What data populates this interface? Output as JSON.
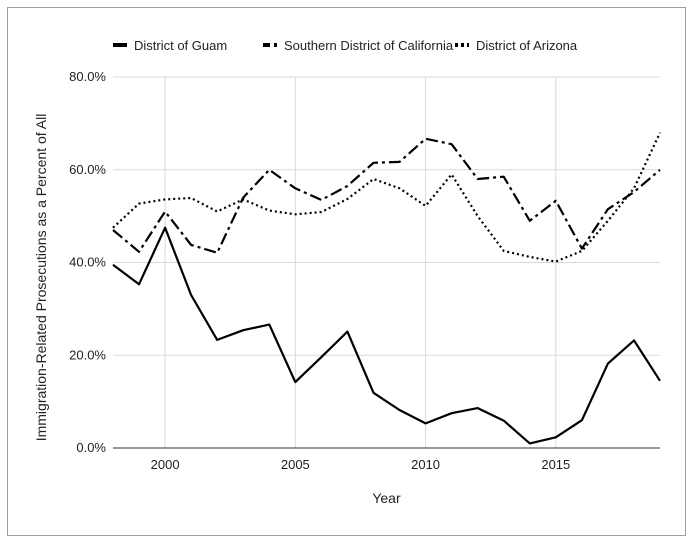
{
  "chart_data": {
    "type": "line",
    "title": "",
    "xlabel": "Year",
    "ylabel": "Immigration-Related Prosecutions as a Percent of All",
    "x": [
      1998,
      1999,
      2000,
      2001,
      2002,
      2003,
      2004,
      2005,
      2006,
      2007,
      2008,
      2009,
      2010,
      2011,
      2012,
      2013,
      2014,
      2015,
      2016,
      2017,
      2018,
      2019
    ],
    "xlim": [
      1998,
      2019
    ],
    "ylim": [
      0,
      80
    ],
    "x_ticks": [
      2000,
      2005,
      2010,
      2015
    ],
    "x_tick_labels": [
      "2000",
      "2005",
      "2010",
      "2015"
    ],
    "y_ticks": [
      0,
      20,
      40,
      60,
      80
    ],
    "y_tick_labels": [
      "0.0%",
      "20.0%",
      "40.0%",
      "60.0%",
      "80.0%"
    ],
    "grid": "horizontal",
    "legend_position": "top",
    "series": [
      {
        "name": "District of Guam",
        "dash": "solid",
        "color": "#000000",
        "values": [
          39.5,
          35.3,
          47.5,
          33.0,
          23.3,
          25.4,
          26.6,
          14.2,
          19.6,
          25.1,
          11.9,
          8.2,
          5.3,
          7.5,
          8.6,
          5.9,
          1.0,
          2.3,
          6.0,
          18.2,
          23.2,
          14.5
        ]
      },
      {
        "name": "Southern District of California",
        "dash": "dashdot",
        "color": "#000000",
        "values": [
          47.0,
          42.3,
          51.0,
          43.8,
          42.1,
          54.0,
          60.0,
          56.0,
          53.5,
          56.5,
          61.5,
          61.7,
          66.7,
          65.5,
          58.0,
          58.5,
          49.0,
          53.3,
          43.0,
          51.5,
          55.2,
          60.0
        ]
      },
      {
        "name": "District of Arizona",
        "dash": "dotted",
        "color": "#000000",
        "values": [
          47.5,
          52.7,
          53.6,
          53.9,
          51.0,
          53.6,
          51.2,
          50.4,
          50.9,
          53.7,
          58.0,
          56.0,
          52.2,
          59.0,
          50.0,
          42.5,
          41.2,
          40.2,
          42.5,
          49.0,
          56.0,
          68.0
        ]
      }
    ]
  }
}
